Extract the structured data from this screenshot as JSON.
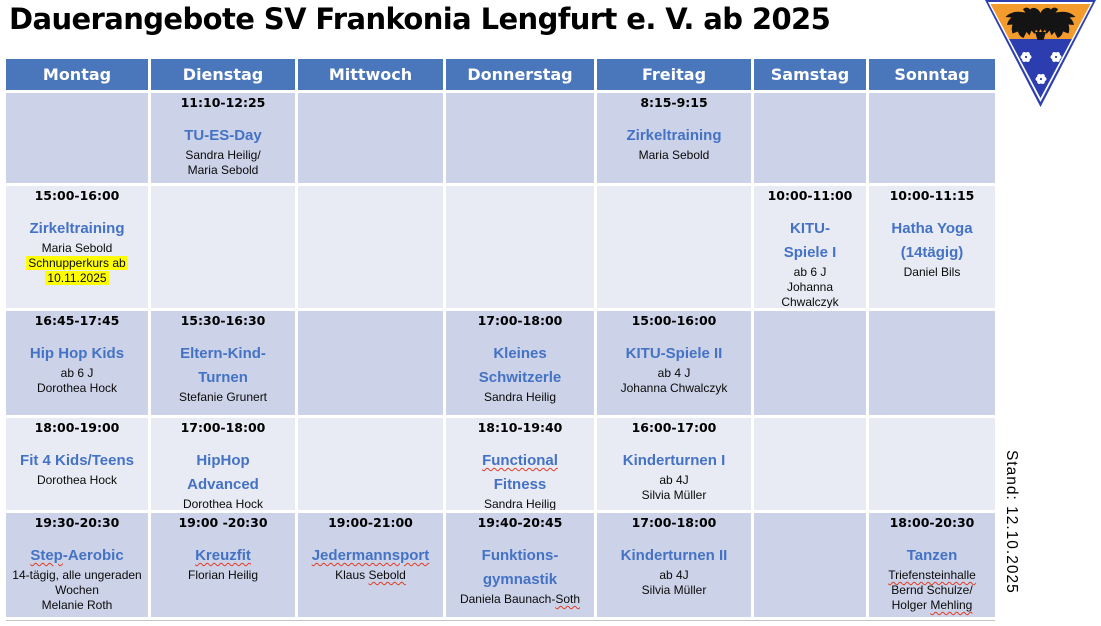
{
  "title": "Dauerangebote SV Frankonia Lengfurt e. V. ab 2025",
  "stand_note": "Stand: 12.10.2025",
  "logo": {
    "name": "sv-frankonia-lengfurt-pennant",
    "description": "inverted triangle club pennant, orange top band with black double-headed eagle, blue lower part with three white rosettes"
  },
  "colors": {
    "header_bg": "#4a76bc",
    "band_dark": "#ccd3e8",
    "band_light": "#e9ebf4",
    "accent": "#4472c4",
    "highlight": "#ffff00",
    "squiggle": "#e03b24",
    "pennant_orange": "#f49b2e",
    "pennant_blue": "#2b3daf"
  },
  "schedule": {
    "days": [
      "Montag",
      "Dienstag",
      "Mittwoch",
      "Donnerstag",
      "Freitag",
      "Samstag",
      "Sonntag"
    ],
    "rows": [
      {
        "band": "dark",
        "cells": [
          null,
          {
            "time": "11:10-12:25",
            "activity": {
              "lines": [
                "TU-ES-Day"
              ]
            },
            "details": [
              {
                "text": "Sandra Heilig/"
              },
              {
                "text": "Maria Sebold"
              }
            ]
          },
          null,
          null,
          {
            "time": "8:15-9:15",
            "activity": {
              "lines": [
                "Zirkeltraining"
              ]
            },
            "details": [
              {
                "text": "Maria Sebold"
              }
            ]
          },
          null,
          null
        ]
      },
      {
        "band": "light",
        "cells": [
          {
            "time": "15:00-16:00",
            "activity": {
              "lines": [
                "Zirkeltraining"
              ]
            },
            "details": [
              {
                "text": "Maria Sebold"
              },
              {
                "text": "Schnupperkurs ab",
                "highlight": true
              },
              {
                "text": "10.11.2025",
                "highlight": true
              }
            ]
          },
          null,
          null,
          null,
          null,
          {
            "time": "10:00-11:00",
            "activity": {
              "lines": [
                "KITU-",
                "Spiele I"
              ]
            },
            "details": [
              {
                "text": "ab 6 J"
              },
              {
                "text": "Johanna"
              },
              {
                "text": "Chwalczyk"
              }
            ]
          },
          {
            "time": "10:00-11:15",
            "activity": {
              "lines": [
                "Hatha Yoga",
                "(14tägig)"
              ]
            },
            "details": [
              {
                "text": "Daniel Bils"
              }
            ]
          }
        ]
      },
      {
        "band": "dark",
        "cells": [
          {
            "time": "16:45-17:45",
            "activity": {
              "lines": [
                "Hip Hop Kids"
              ]
            },
            "details": [
              {
                "text": "ab 6 J"
              },
              {
                "text": "Dorothea Hock"
              }
            ]
          },
          {
            "time": "15:30-16:30",
            "activity": {
              "lines": [
                "Eltern-Kind-",
                "Turnen"
              ]
            },
            "details": [
              {
                "text": "Stefanie Grunert"
              }
            ]
          },
          null,
          {
            "time": "17:00-18:00",
            "activity": {
              "lines": [
                "Kleines",
                "Schwitzerle"
              ]
            },
            "details": [
              {
                "text": "Sandra Heilig"
              }
            ]
          },
          {
            "time": "15:00-16:00",
            "activity": {
              "lines": [
                "KITU-Spiele II"
              ]
            },
            "details": [
              {
                "text": "ab 4 J"
              },
              {
                "text": "Johanna Chwalczyk"
              }
            ]
          },
          null,
          null
        ]
      },
      {
        "band": "light",
        "cells": [
          {
            "time": "18:00-19:00",
            "activity": {
              "lines": [
                "Fit 4 Kids/Teens"
              ]
            },
            "details": [
              {
                "text": "Dorothea Hock"
              }
            ]
          },
          {
            "time": "17:00-18:00",
            "activity": {
              "lines": [
                "HipHop",
                "Advanced"
              ]
            },
            "details": [
              {
                "text": "Dorothea Hock"
              }
            ]
          },
          null,
          {
            "time": "18:10-19:40",
            "activity": {
              "lines": [
                "Functional",
                "Fitness"
              ],
              "squiggle": "Functional"
            },
            "details": [
              {
                "text": "Sandra Heilig"
              }
            ]
          },
          {
            "time": "16:00-17:00",
            "activity": {
              "lines": [
                "Kinderturnen I"
              ]
            },
            "details": [
              {
                "text": "ab 4J"
              },
              {
                "text": "Silvia Müller"
              }
            ]
          },
          null,
          null
        ]
      },
      {
        "band": "dark",
        "cells": [
          {
            "time": "19:30-20:30",
            "activity": {
              "lines": [
                "Step-Aerobic"
              ],
              "squiggle": "Step"
            },
            "details": [
              {
                "text": "14-tägig, alle ungeraden"
              },
              {
                "text": "Wochen"
              },
              {
                "text": "Melanie Roth"
              }
            ]
          },
          {
            "time": "19:00 -20:30",
            "activity": {
              "lines": [
                "Kreuzfit"
              ],
              "squiggle": "Kreuzfit"
            },
            "details": [
              {
                "text": "Florian Heilig"
              }
            ]
          },
          {
            "time": "19:00-21:00",
            "activity": {
              "lines": [
                "Jedermannsport"
              ],
              "squiggle": "Jedermannsport"
            },
            "details": [
              {
                "text": "Klaus Sebold",
                "squiggle": "Sebold"
              }
            ]
          },
          {
            "time": "19:40-20:45",
            "activity": {
              "lines": [
                "Funktions-",
                "gymnastik"
              ]
            },
            "details": [
              {
                "text": "Daniela Baunach-Soth",
                "squiggle": "Soth"
              }
            ]
          },
          {
            "time": "17:00-18:00",
            "activity": {
              "lines": [
                "Kinderturnen II"
              ]
            },
            "details": [
              {
                "text": "ab 4J"
              },
              {
                "text": "Silvia Müller"
              }
            ]
          },
          null,
          {
            "time": "18:00-20:30",
            "activity": {
              "lines": [
                "Tanzen"
              ]
            },
            "details": [
              {
                "text": "Triefensteinhalle",
                "squiggle": "Triefensteinhalle"
              },
              {
                "text": "Bernd Schulze/"
              },
              {
                "text": "Holger Mehling",
                "squiggle": "Mehling"
              }
            ]
          }
        ]
      }
    ]
  }
}
